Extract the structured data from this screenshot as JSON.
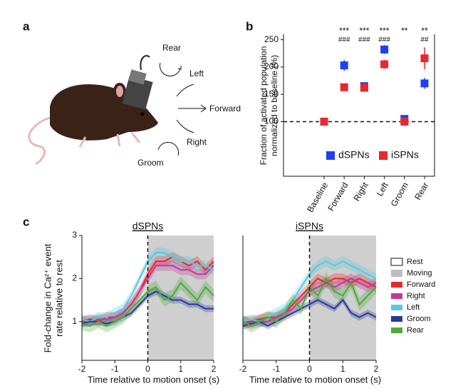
{
  "panel_labels": [
    "a",
    "b",
    "c"
  ],
  "illustration": {
    "labels": [
      "Rear",
      "Left",
      "Forward",
      "Right",
      "Groom"
    ]
  },
  "chart_data": [
    {
      "type": "scatter",
      "y_label": [
        "Fraction of activated population",
        "normalized to baseline (%)"
      ],
      "categories": [
        "Baseline",
        "Forward",
        "Right",
        "Left",
        "Groom",
        "Rear"
      ],
      "series": [
        {
          "name": "dSPNs",
          "color": "#1f3ff0",
          "values": [
            100,
            203,
            165,
            232,
            105,
            170
          ],
          "errors": [
            3,
            10,
            5,
            8,
            4,
            10
          ]
        },
        {
          "name": "iSPNs",
          "color": "#e8282e",
          "values": [
            100,
            163,
            162,
            205,
            100,
            216
          ],
          "errors": [
            2,
            5,
            6,
            8,
            3,
            20
          ]
        }
      ],
      "stars": [
        null,
        "***",
        "***",
        "***",
        "**",
        "**"
      ],
      "hashes": [
        null,
        "###",
        "###",
        "###",
        null,
        "##"
      ],
      "baseline": 100,
      "ylim": [
        0,
        260
      ],
      "yticks": [
        100,
        150,
        200,
        250
      ]
    },
    {
      "type": "line",
      "title": "dSPNs",
      "y_label": [
        "Fold-change in Ca²⁺ event",
        "rate relative to rest"
      ],
      "x_label": "Time relative to motion onset (s)",
      "x": [
        -2,
        -1.75,
        -1.5,
        -1.25,
        -1,
        -0.75,
        -0.5,
        -0.25,
        0,
        0.25,
        0.5,
        0.75,
        1,
        1.25,
        1.5,
        1.75,
        2
      ],
      "xlim": [
        -2,
        2
      ],
      "xticks": [
        -2,
        -1,
        0,
        1,
        2
      ],
      "ylim": [
        0.1,
        3.0
      ],
      "yticks": [
        1,
        2,
        3
      ],
      "shade_x": [
        0,
        2
      ],
      "shade_color": "#cfcfcf",
      "onset": 0,
      "series": [
        {
          "color": "#e8282e",
          "band": 0.12,
          "values": [
            1.0,
            1.05,
            1.0,
            1.1,
            1.1,
            1.2,
            1.4,
            1.7,
            2.1,
            2.4,
            2.4,
            2.5,
            2.4,
            2.3,
            2.4,
            2.2,
            2.4
          ]
        },
        {
          "color": "#c0399a",
          "band": 0.12,
          "values": [
            1.0,
            1.0,
            1.05,
            1.05,
            1.1,
            1.2,
            1.4,
            1.7,
            2.0,
            2.3,
            2.3,
            2.3,
            2.2,
            2.2,
            2.1,
            2.1,
            2.3
          ]
        },
        {
          "color": "#5bc8e0",
          "band": 0.12,
          "values": [
            1.05,
            1.0,
            1.1,
            1.1,
            1.2,
            1.3,
            1.6,
            2.0,
            2.4,
            2.6,
            2.6,
            2.5,
            2.4,
            2.4,
            2.3,
            2.3,
            2.2
          ]
        },
        {
          "color": "#2a3a9a",
          "band": 0.08,
          "values": [
            0.95,
            1.0,
            1.0,
            0.95,
            1.0,
            1.1,
            1.2,
            1.4,
            1.6,
            1.7,
            1.6,
            1.5,
            1.5,
            1.4,
            1.4,
            1.3,
            1.3
          ]
        },
        {
          "color": "#4caa3a",
          "band": 0.15,
          "values": [
            0.95,
            0.9,
            1.0,
            0.9,
            1.0,
            1.1,
            1.3,
            1.5,
            1.7,
            1.8,
            1.5,
            1.6,
            1.9,
            1.7,
            1.5,
            1.8,
            1.6
          ]
        }
      ]
    },
    {
      "type": "line",
      "title": "iSPNs",
      "x_label": "Time relative to motion onset (s)",
      "x": [
        -2,
        -1.75,
        -1.5,
        -1.25,
        -1,
        -0.75,
        -0.5,
        -0.25,
        0,
        0.25,
        0.5,
        0.75,
        1,
        1.25,
        1.5,
        1.75,
        2
      ],
      "xlim": [
        -2,
        2
      ],
      "xticks": [
        -2,
        -1,
        0,
        1,
        2
      ],
      "ylim": [
        0.1,
        3.0
      ],
      "shade_x": [
        0,
        2
      ],
      "shade_color": "#cfcfcf",
      "onset": 0,
      "legend_extra": [
        {
          "name": "Rest",
          "color": "#ffffff"
        },
        {
          "name": "Moving",
          "color": "#bdbdbd"
        }
      ],
      "series": [
        {
          "name": "Forward",
          "color": "#e8282e",
          "band": 0.12,
          "values": [
            1.0,
            1.0,
            1.05,
            1.1,
            1.1,
            1.2,
            1.4,
            1.6,
            1.8,
            2.0,
            1.9,
            2.0,
            2.0,
            1.9,
            2.0,
            1.9,
            1.8
          ]
        },
        {
          "name": "Right",
          "color": "#c0399a",
          "band": 0.12,
          "values": [
            1.0,
            0.95,
            1.0,
            1.0,
            1.1,
            1.2,
            1.3,
            1.5,
            1.7,
            1.8,
            1.9,
            1.8,
            1.9,
            2.0,
            1.9,
            1.8,
            1.9
          ]
        },
        {
          "name": "Left",
          "color": "#5bc8e0",
          "band": 0.12,
          "values": [
            1.0,
            1.05,
            1.0,
            1.1,
            1.2,
            1.3,
            1.5,
            1.8,
            2.1,
            2.3,
            2.4,
            2.3,
            2.4,
            2.3,
            2.2,
            2.1,
            2.0
          ]
        },
        {
          "name": "Groom",
          "color": "#2a3a9a",
          "band": 0.08,
          "values": [
            0.9,
            0.95,
            1.0,
            0.9,
            1.0,
            1.1,
            1.2,
            1.3,
            1.4,
            1.5,
            1.4,
            1.3,
            1.5,
            1.2,
            1.1,
            1.2,
            1.1
          ]
        },
        {
          "name": "Rear",
          "color": "#4caa3a",
          "band": 0.15,
          "values": [
            1.0,
            0.9,
            1.0,
            1.1,
            1.0,
            1.2,
            1.5,
            1.3,
            1.8,
            1.6,
            2.0,
            1.7,
            1.6,
            1.9,
            1.4,
            1.6,
            1.8
          ]
        }
      ]
    }
  ]
}
